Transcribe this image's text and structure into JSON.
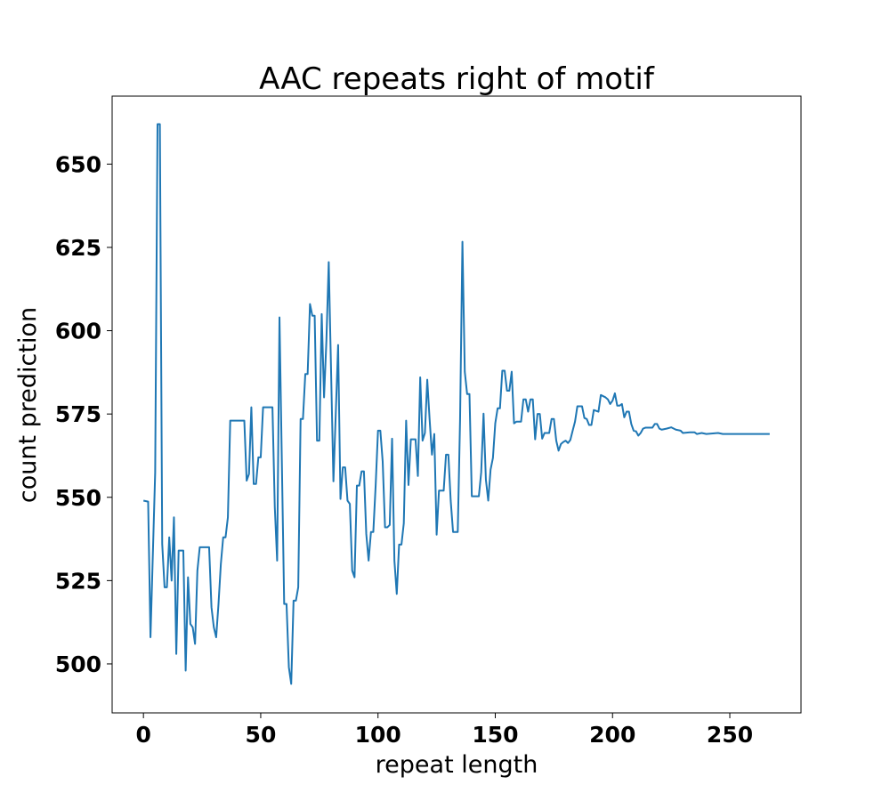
{
  "chart_data": {
    "type": "line",
    "title": "AAC repeats right of motif",
    "x_label": "repeat length",
    "y_label": "count prediction",
    "color": "#1f77b4",
    "x": [
      0,
      2,
      3,
      5,
      6,
      7,
      8,
      9,
      10,
      11,
      12,
      13,
      14,
      15,
      17,
      18,
      19,
      20,
      21,
      22,
      23,
      24,
      28,
      29,
      30,
      31,
      32,
      33,
      34,
      35,
      36,
      37,
      43,
      44,
      45,
      46,
      47,
      48,
      49,
      50,
      51,
      55,
      56,
      57,
      58,
      60,
      61,
      62,
      63,
      64,
      65,
      66,
      67,
      68,
      69,
      70,
      71,
      72,
      73,
      74,
      75,
      76,
      77,
      78,
      79,
      81,
      83,
      84,
      85,
      86,
      87,
      88,
      89,
      90,
      91,
      92,
      93,
      94,
      95,
      96,
      97,
      98,
      99,
      100,
      101,
      102,
      103,
      104,
      105,
      106,
      107,
      108,
      109,
      110,
      111,
      112,
      113,
      114,
      116,
      117,
      118,
      119,
      120,
      121,
      122,
      123,
      124,
      125,
      126,
      128,
      129,
      130,
      131,
      132,
      134,
      135,
      136,
      137,
      138,
      139,
      140,
      143,
      144,
      145,
      146,
      147,
      148,
      149,
      150,
      151,
      152,
      153,
      154,
      155,
      156,
      157,
      158,
      159,
      161,
      162,
      163,
      164,
      165,
      166,
      167,
      168,
      169,
      170,
      171,
      173,
      174,
      175,
      176,
      177,
      178,
      179,
      180,
      181,
      182,
      183,
      184,
      185,
      187,
      188,
      189,
      190,
      191,
      192,
      194,
      195,
      197,
      198,
      199,
      200,
      201,
      202,
      203,
      204,
      205,
      206,
      207,
      208,
      209,
      210,
      211,
      212,
      213,
      214,
      217,
      218,
      219,
      220,
      221,
      223,
      225,
      227,
      229,
      230,
      233,
      235,
      236,
      238,
      240,
      245,
      247,
      267
    ],
    "values": [
      549,
      548.7,
      508,
      557.5,
      662,
      662,
      536,
      523,
      523,
      538,
      525,
      544,
      503,
      534,
      534,
      498,
      526,
      512,
      511,
      506,
      528,
      535,
      535,
      517,
      511,
      508,
      518,
      530,
      538,
      538,
      544,
      573,
      573,
      555,
      557,
      577,
      554,
      554,
      562,
      562,
      577,
      577,
      547,
      531,
      604,
      518,
      518,
      499,
      494,
      519,
      519,
      523,
      573.5,
      573.5,
      587,
      587,
      608,
      604.5,
      604.5,
      567,
      567,
      605,
      580,
      597,
      620.6,
      554.8,
      595.7,
      549.5,
      559,
      559,
      549,
      548,
      528,
      526,
      553.5,
      553.5,
      557.8,
      557.8,
      539,
      531,
      539.6,
      539.6,
      553.5,
      570,
      570,
      560.7,
      541,
      541,
      541.7,
      567.6,
      531,
      521,
      535.8,
      535.8,
      542.2,
      573,
      553.7,
      567.4,
      567.4,
      556.4,
      586,
      567,
      569.3,
      585.3,
      573.5,
      562.8,
      569,
      538.8,
      552,
      552,
      562.8,
      562.8,
      549,
      539.6,
      539.6,
      573.5,
      626.7,
      587.7,
      581,
      581,
      550.3,
      550.3,
      557.5,
      575.1,
      555.3,
      549,
      558.3,
      561.8,
      572.2,
      576.7,
      576.7,
      588,
      588,
      582,
      582,
      587.7,
      572.2,
      572.7,
      572.7,
      579.4,
      579.4,
      575.7,
      579.4,
      579.4,
      567.4,
      575,
      575,
      567.6,
      569.3,
      569.3,
      573.5,
      573.5,
      567,
      564,
      566,
      566.6,
      567,
      566.3,
      567.2,
      570,
      572.7,
      577.3,
      577.3,
      573.8,
      573.5,
      571.7,
      571.7,
      576.2,
      575.7,
      580.7,
      580,
      579.4,
      578,
      579,
      581.2,
      577.5,
      577.5,
      578,
      574,
      575.7,
      575.7,
      572,
      570,
      569.8,
      568.5,
      569.3,
      570.6,
      570.9,
      570.9,
      572,
      572,
      570.6,
      570.3,
      570.6,
      571,
      570.3,
      570,
      569.3,
      569.5,
      569.5,
      569,
      569.3,
      569,
      569.3,
      569,
      569
    ],
    "xlim": [
      -13.35,
      280.35
    ],
    "ylim": [
      485.3,
      670.4
    ],
    "xticks": [
      0,
      50,
      100,
      150,
      200,
      250
    ],
    "yticks": [
      500,
      525,
      550,
      575,
      600,
      625,
      650
    ]
  }
}
